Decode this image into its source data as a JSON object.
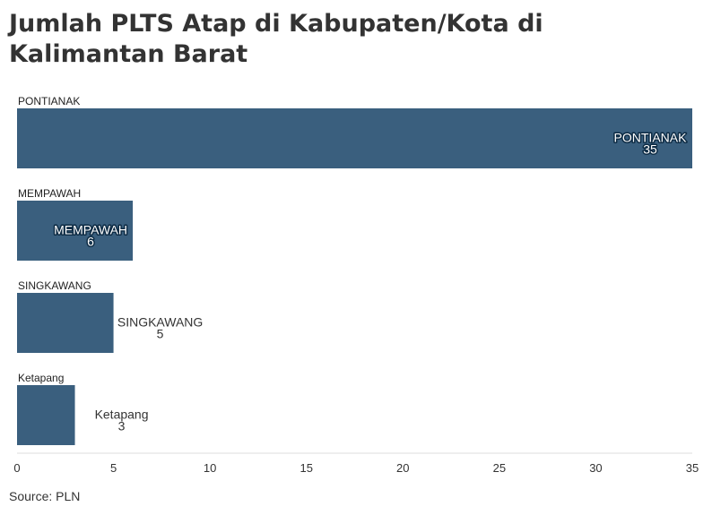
{
  "title": "Jumlah PLTS Atap di Kabupaten/Kota di Kalimantan Barat",
  "source": "Source: PLN",
  "chart_data": {
    "type": "bar",
    "orientation": "horizontal",
    "title": "Jumlah PLTS Atap di Kabupaten/Kota di Kalimantan Barat",
    "categories": [
      "PONTIANAK",
      "MEMPAWAH",
      "SINGKAWANG",
      "Ketapang"
    ],
    "values": [
      35,
      6,
      5,
      3
    ],
    "xlim": [
      0,
      35
    ],
    "xticks": [
      0,
      5,
      10,
      15,
      20,
      25,
      30,
      35
    ],
    "grid": false,
    "bar_color": "#3a5f7e"
  }
}
